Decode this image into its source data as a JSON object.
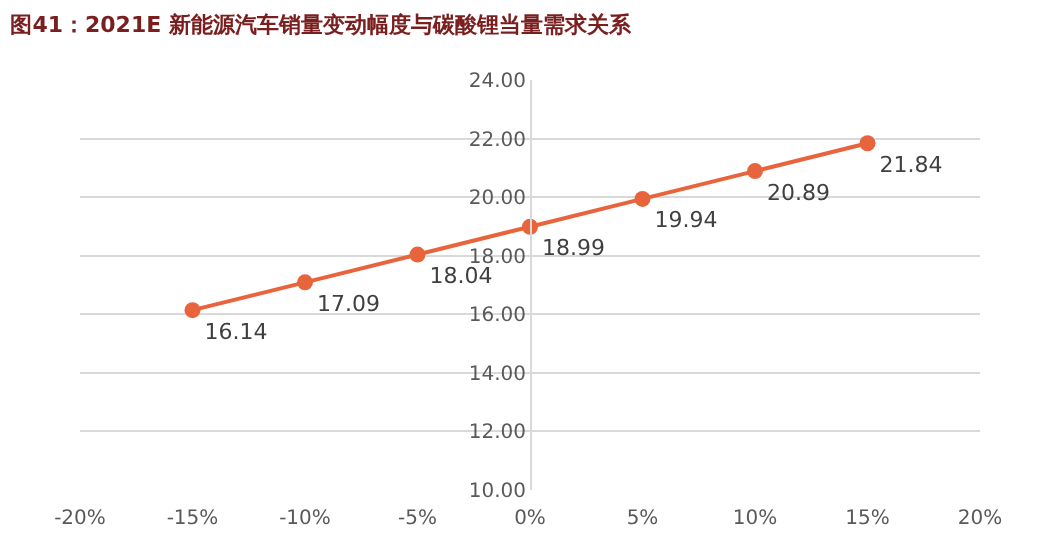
{
  "chart_data": {
    "type": "line",
    "title": "图41：2021E 新能源汽车销量变动幅度与碳酸锂当量需求关系",
    "x": [
      -15,
      -10,
      -5,
      0,
      5,
      10,
      15
    ],
    "series": [
      {
        "color": "#e8643c",
        "values": [
          16.14,
          17.09,
          18.04,
          18.99,
          19.94,
          20.89,
          21.84
        ]
      }
    ],
    "data_labels": true,
    "marker": "circle",
    "line_style": "solid",
    "grid": "y",
    "xlim": [
      -20,
      20
    ],
    "xticks": [
      {
        "value": -20,
        "label": "-20%"
      },
      {
        "value": -15,
        "label": "-15%"
      },
      {
        "value": -10,
        "label": "-10%"
      },
      {
        "value": -5,
        "label": "-5%"
      },
      {
        "value": 0,
        "label": "0%"
      },
      {
        "value": 5,
        "label": "5%"
      },
      {
        "value": 10,
        "label": "10%"
      },
      {
        "value": 15,
        "label": "15%"
      },
      {
        "value": 20,
        "label": "20%"
      }
    ],
    "ylim": [
      10,
      24
    ],
    "yticks": [
      {
        "value": 10,
        "label": "10.00"
      },
      {
        "value": 12,
        "label": "12.00"
      },
      {
        "value": 14,
        "label": "14.00"
      },
      {
        "value": 16,
        "label": "16.00"
      },
      {
        "value": 18,
        "label": "18.00"
      },
      {
        "value": 20,
        "label": "20.00"
      },
      {
        "value": 22,
        "label": "22.00"
      },
      {
        "value": 24,
        "label": "24.00"
      }
    ]
  }
}
